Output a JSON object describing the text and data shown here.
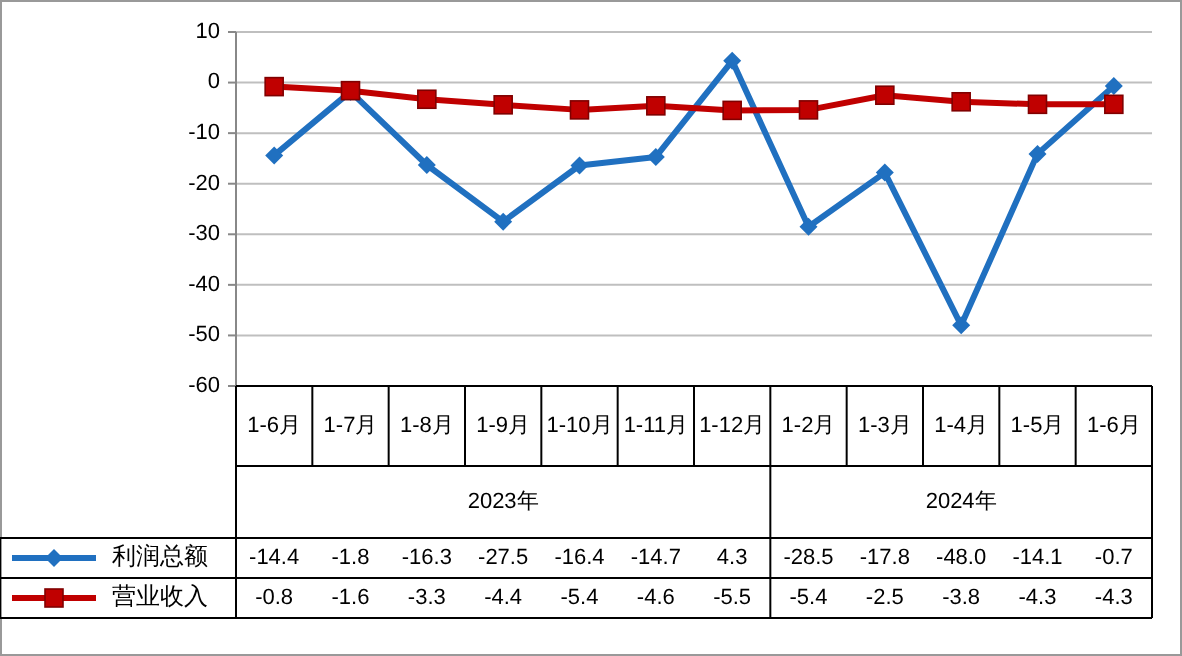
{
  "chart_data": {
    "type": "line",
    "categories": [
      "1-6月",
      "1-7月",
      "1-8月",
      "1-9月",
      "1-10月",
      "1-11月",
      "1-12月",
      "1-2月",
      "1-3月",
      "1-4月",
      "1-5月",
      "1-6月"
    ],
    "series": [
      {
        "name": "利润总额",
        "color": "#2070c0",
        "marker": "diamond",
        "values": [
          -14.4,
          -1.8,
          -16.3,
          -27.5,
          -16.4,
          -14.7,
          4.3,
          -28.5,
          -17.8,
          -48.0,
          -14.1,
          -0.7
        ],
        "value_labels": [
          "-14.4",
          "-1.8",
          "-16.3",
          "-27.5",
          "-16.4",
          "-14.7",
          "4.3",
          "-28.5",
          "-17.8",
          "-48.0",
          "-14.1",
          "-0.7"
        ]
      },
      {
        "name": "营业收入",
        "color": "#c00000",
        "marker": "square",
        "values": [
          -0.8,
          -1.6,
          -3.3,
          -4.4,
          -5.4,
          -4.6,
          -5.5,
          -5.4,
          -2.5,
          -3.8,
          -4.3,
          -4.3
        ],
        "value_labels": [
          "-0.8",
          "-1.6",
          "-3.3",
          "-4.4",
          "-5.4",
          "-4.6",
          "-5.5",
          "-5.4",
          "-2.5",
          "-3.8",
          "-4.3",
          "-4.3"
        ]
      }
    ],
    "annotations": [
      "2023年",
      "2024年"
    ],
    "ylim": [
      -60,
      10
    ],
    "yticks": [
      -60,
      -50,
      -40,
      -30,
      -20,
      -10,
      0,
      10
    ],
    "grid": "y",
    "legend": "bottom"
  }
}
